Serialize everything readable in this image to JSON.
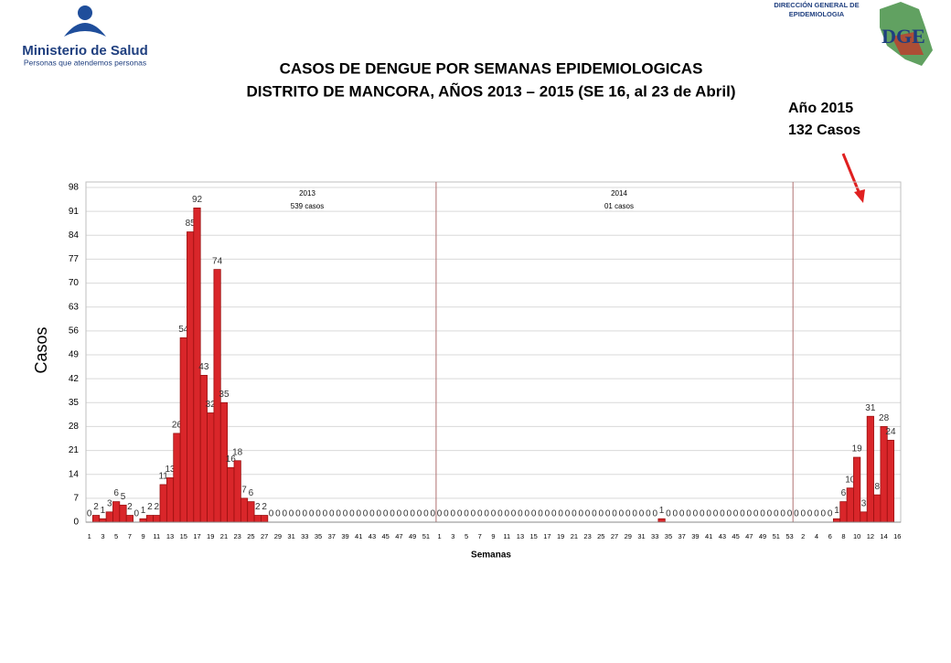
{
  "header": {
    "ministry": "Ministerio de Salud",
    "ministry_tagline": "Personas que atendemos personas",
    "agency_line1": "DIRECCIÓN GENERAL DE",
    "agency_line2": "EPIDEMIOLOGIA",
    "callout_line1": "Año 2015",
    "callout_line2": "132 Casos"
  },
  "chart_data": {
    "type": "bar",
    "title": "CASOS DE DENGUE POR SEMANAS EPIDEMIOLOGICAS",
    "subtitle": "DISTRITO DE MANCORA, AÑOS 2013 – 2015 (SE 16, al 23 de Abril)",
    "x_label": "Semanas",
    "y_label": "Casos",
    "annotations": [
      [
        "2013",
        "539 casos"
      ],
      [
        "2014",
        "01 casos"
      ]
    ],
    "color": "#d9262a",
    "grid": true,
    "ylim": [
      0,
      98
    ],
    "yticks": [
      0,
      7,
      14,
      21,
      28,
      35,
      42,
      49,
      56,
      63,
      70,
      77,
      84,
      91,
      98
    ],
    "year_breaks": [
      52,
      105
    ],
    "categories": [
      "1",
      null,
      "3",
      null,
      "5",
      null,
      "7",
      null,
      "9",
      null,
      "11",
      null,
      "13",
      null,
      "15",
      null,
      "17",
      null,
      "19",
      null,
      "21",
      null,
      "23",
      null,
      "25",
      null,
      "27",
      null,
      "29",
      null,
      "31",
      null,
      "33",
      null,
      "35",
      null,
      "37",
      null,
      "39",
      null,
      "41",
      null,
      "43",
      null,
      "45",
      null,
      "47",
      null,
      "49",
      null,
      "51",
      null,
      "1",
      null,
      "3",
      null,
      "5",
      null,
      "7",
      null,
      "9",
      null,
      "11",
      null,
      "13",
      null,
      "15",
      null,
      "17",
      null,
      "19",
      null,
      "21",
      null,
      "23",
      null,
      "25",
      null,
      "27",
      null,
      "29",
      null,
      "31",
      null,
      "33",
      null,
      "35",
      null,
      "37",
      null,
      "39",
      null,
      "41",
      null,
      "43",
      null,
      "45",
      null,
      "47",
      null,
      "49",
      null,
      "51",
      null,
      "53",
      null,
      "2",
      null,
      "4",
      null,
      "6",
      null,
      "8",
      null,
      "10",
      null,
      "12",
      null,
      "14",
      null,
      "16"
    ],
    "values": [
      0,
      2,
      1,
      3,
      6,
      5,
      2,
      0,
      1,
      2,
      2,
      11,
      13,
      26,
      54,
      85,
      92,
      43,
      32,
      74,
      35,
      16,
      18,
      7,
      6,
      2,
      2,
      0,
      0,
      0,
      0,
      0,
      0,
      0,
      0,
      0,
      0,
      0,
      0,
      0,
      0,
      0,
      0,
      0,
      0,
      0,
      0,
      0,
      0,
      0,
      0,
      0,
      0,
      0,
      0,
      0,
      0,
      0,
      0,
      0,
      0,
      0,
      0,
      0,
      0,
      0,
      0,
      0,
      0,
      0,
      0,
      0,
      0,
      0,
      0,
      0,
      0,
      0,
      0,
      0,
      0,
      0,
      0,
      0,
      0,
      1,
      0,
      0,
      0,
      0,
      0,
      0,
      0,
      0,
      0,
      0,
      0,
      0,
      0,
      0,
      0,
      0,
      0,
      0,
      0,
      0,
      0,
      0,
      0,
      0,
      0,
      1,
      6,
      10,
      19,
      3,
      31,
      8,
      28,
      24,
      null
    ]
  }
}
